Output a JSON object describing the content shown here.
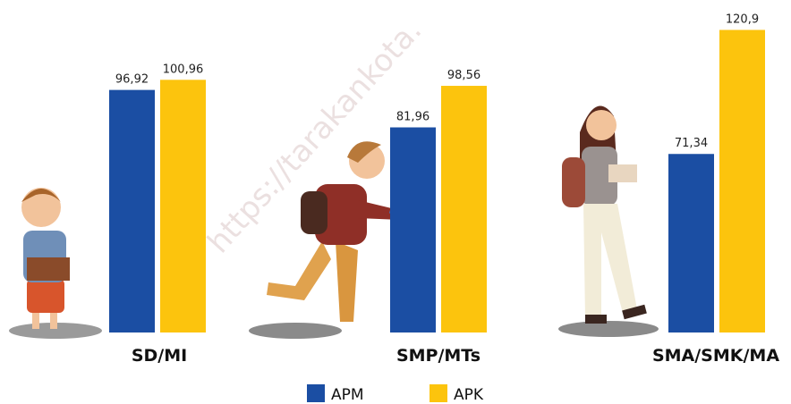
{
  "chart_data": {
    "type": "bar",
    "categories": [
      "SD/MI",
      "SMP/MTs",
      "SMA/SMK/MA"
    ],
    "series": [
      {
        "name": "APM",
        "color": "#1b4ea3",
        "values": [
          96.92,
          81.96,
          71.34
        ],
        "value_labels": [
          "96,92",
          "81,96",
          "71,34"
        ]
      },
      {
        "name": "APK",
        "color": "#fcc40d",
        "values": [
          100.96,
          98.56,
          120.9
        ],
        "value_labels": [
          "100,96",
          "98,56",
          "120,9"
        ]
      }
    ],
    "ylim": [
      0,
      125
    ],
    "watermark": "https://tarakankota."
  }
}
